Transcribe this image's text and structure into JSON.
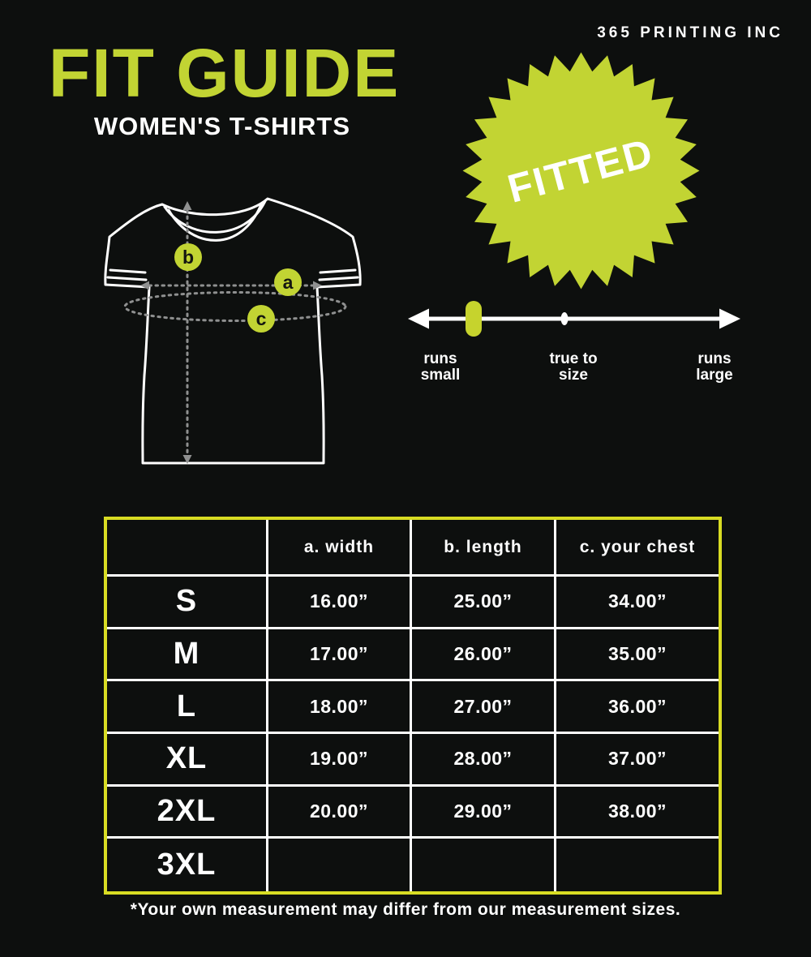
{
  "brand": "365 PRINTING INC",
  "header": {
    "title": "FIT GUIDE",
    "subtitle": "WOMEN'S T-SHIRTS"
  },
  "badge": {
    "label": "FITTED"
  },
  "diagram": {
    "markers": [
      {
        "label": "b",
        "meaning": "length"
      },
      {
        "label": "a",
        "meaning": "width"
      },
      {
        "label": "c",
        "meaning": "your chest"
      }
    ]
  },
  "fit_scale": {
    "left_label": [
      "runs",
      "small"
    ],
    "center_label": [
      "true to",
      "size"
    ],
    "right_label": [
      "runs",
      "large"
    ],
    "marker_position": "between runs small and true to size"
  },
  "size_table": {
    "columns": [
      "",
      "a. width",
      "b. length",
      "c. your chest"
    ],
    "rows": [
      {
        "size": "S",
        "width": "16.00”",
        "length": "25.00”",
        "chest": "34.00”"
      },
      {
        "size": "M",
        "width": "17.00”",
        "length": "26.00”",
        "chest": "35.00”"
      },
      {
        "size": "L",
        "width": "18.00”",
        "length": "27.00”",
        "chest": "36.00”"
      },
      {
        "size": "XL",
        "width": "19.00”",
        "length": "28.00”",
        "chest": "37.00”"
      },
      {
        "size": "2XL",
        "width": "20.00”",
        "length": "29.00”",
        "chest": "38.00”"
      },
      {
        "size": "3XL",
        "width": "",
        "length": "",
        "chest": ""
      }
    ]
  },
  "footnote": "*Your own measurement may differ from our measurement sizes.",
  "colors": {
    "background": "#0d0f0e",
    "accent_green": "#c2d433",
    "table_border": "#d8dc23",
    "dotted_gray": "#8f9090",
    "white": "#ffffff"
  }
}
